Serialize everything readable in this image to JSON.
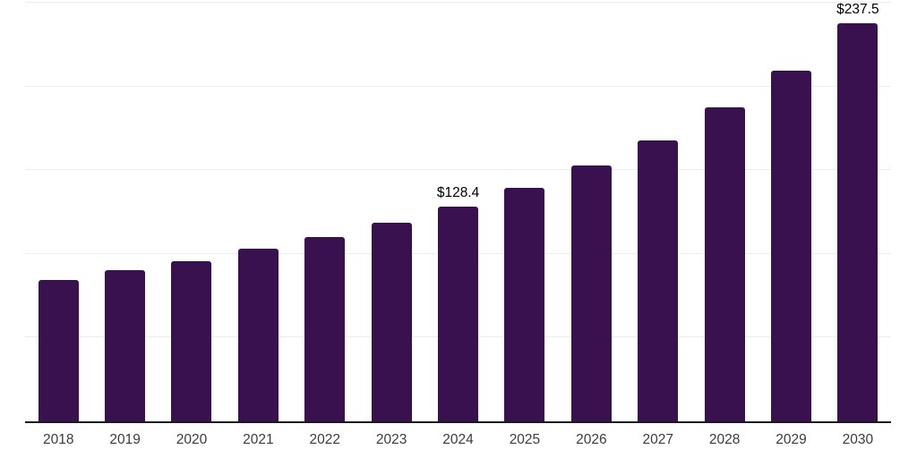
{
  "chart_data": {
    "type": "bar",
    "title": "",
    "xlabel": "",
    "ylabel": "",
    "categories": [
      "2018",
      "2019",
      "2020",
      "2021",
      "2022",
      "2023",
      "2024",
      "2025",
      "2026",
      "2027",
      "2028",
      "2029",
      "2030"
    ],
    "values": [
      84.6,
      90.1,
      95.7,
      102.9,
      110.2,
      118.7,
      128.4,
      139.2,
      152.8,
      168.0,
      187.5,
      209.4,
      237.5
    ],
    "data_labels": [
      "",
      "",
      "",
      "",
      "",
      "",
      "$128.4",
      "",
      "",
      "",
      "",
      "",
      "$237.5"
    ],
    "value_prefix": "$",
    "ylim": [
      0,
      250
    ],
    "gridlines": [
      50,
      100,
      150,
      200,
      250
    ],
    "grid": "horizontal-only",
    "legend": "none",
    "y_axis_tick_labels": "none",
    "colors": {
      "bar_fill": "#38114E",
      "gridline": "#ededed",
      "axis_line": "#1a1a1a",
      "x_tick_label": "#3c3c3c",
      "data_label": "#000000",
      "background": "#ffffff"
    }
  }
}
